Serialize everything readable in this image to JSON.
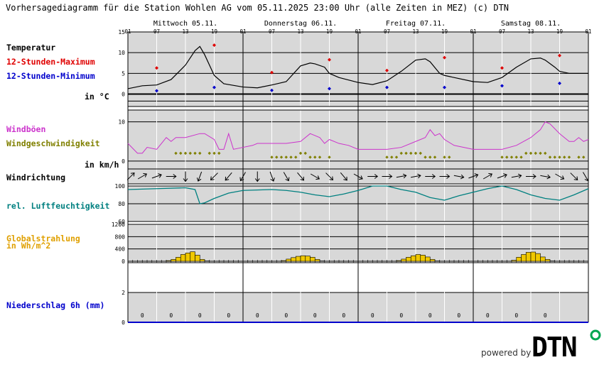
{
  "title": "Vorhersagediagramm für die Station Wohlen AG vom 05.11.2025 23:00 Uhr (alle Zeiten in MEZ)   (c) DTN",
  "days": [
    "Mittwoch 05.11.",
    "Donnerstag 06.11.",
    "Freitag 07.11.",
    "Samstag 08.11."
  ],
  "hour_ticks": [
    "01",
    "07",
    "13",
    "19",
    "01",
    "07",
    "13",
    "19",
    "01",
    "07",
    "13",
    "19",
    "01",
    "07",
    "13",
    "19",
    "01"
  ],
  "labels": {
    "temp": "Temperatur",
    "tmax": "12-Stunden-Maximum",
    "tmin": "12-Stunden-Minimum",
    "temp_unit": "in °C",
    "gust": "Windböen",
    "wind": "Windgeschwindigkeit",
    "wind_unit": "in km/h",
    "winddir": "Windrichtung",
    "humidity": "rel. Luftfeuchtigkeit",
    "radiation": "Globalstrahlung",
    "radiation_unit": "in Wh/m^2",
    "precip": "Niederschlag 6h (mm)"
  },
  "brand": {
    "powered_by": "powered by",
    "logo_text": "DTN",
    "logo_color": "#000000",
    "logo_accent": "#00a651"
  },
  "colors": {
    "temp": "#000000",
    "tmax": "#e00000",
    "tmin": "#0000cc",
    "gust": "#cc33cc",
    "wind": "#808000",
    "humidity": "#008080",
    "radiation": "#f0c800",
    "radiation_label": "#e0a000",
    "precip_label": "#0000cc",
    "panel": "#d8d8d8"
  },
  "chart_data": [
    {
      "type": "line",
      "name": "temperature",
      "x_unit": "hours since 05.11. 01:00",
      "yticks": [
        0,
        5,
        10,
        15
      ],
      "ylim": [
        -3,
        15
      ],
      "x": [
        0,
        3,
        6,
        9,
        12,
        14,
        15,
        16,
        18,
        20,
        24,
        27,
        30,
        33,
        36,
        38,
        39,
        41,
        42,
        44,
        48,
        51,
        54,
        57,
        60,
        62,
        63,
        65,
        66,
        68,
        72,
        75,
        78,
        81,
        84,
        86,
        87,
        89,
        90,
        92,
        96
      ],
      "values": [
        1.3,
        2,
        2.2,
        3.5,
        7,
        10.5,
        11.5,
        9.5,
        4.5,
        2.5,
        1.7,
        1.5,
        2.2,
        3,
        6.8,
        7.5,
        7.3,
        6.5,
        5,
        4,
        2.8,
        2.3,
        3.2,
        5.5,
        8.2,
        8.5,
        7.8,
        5,
        4.5,
        4,
        3,
        2.8,
        4,
        6.5,
        8.5,
        8.7,
        8.2,
        6.5,
        5.5,
        5,
        5
      ],
      "max_x": [
        6,
        18,
        30,
        42,
        54,
        66,
        78,
        90
      ],
      "max": [
        6.3,
        11.8,
        5.2,
        8.3,
        5.7,
        8.8,
        6.3,
        9.3
      ],
      "min_x": [
        6,
        18,
        30,
        42,
        54,
        66,
        78,
        90
      ],
      "min": [
        0.8,
        1.6,
        0.9,
        1.3,
        1.6,
        1.6,
        2,
        2.6
      ]
    },
    {
      "type": "line",
      "name": "wind",
      "yticks": [
        0,
        10
      ],
      "ylim": [
        -2,
        13
      ],
      "gust_x": [
        0,
        2,
        3,
        4,
        6,
        7,
        8,
        9,
        10,
        12,
        15,
        16,
        18,
        19,
        20,
        21,
        22,
        24,
        26,
        27,
        30,
        33,
        36,
        38,
        39,
        40,
        41,
        42,
        44,
        46,
        48,
        50,
        54,
        57,
        60,
        62,
        63,
        64,
        65,
        66,
        68,
        72,
        75,
        78,
        81,
        84,
        86,
        87,
        88,
        90,
        92,
        93,
        94,
        95,
        96
      ],
      "gust": [
        4.5,
        2,
        2,
        3.5,
        3,
        4.5,
        6,
        5,
        6,
        6,
        7,
        7,
        5.5,
        3,
        3,
        7,
        3,
        3.5,
        4,
        4.5,
        4.5,
        4.5,
        5,
        7,
        6.5,
        6,
        4.5,
        5.5,
        4.5,
        4,
        3,
        3,
        3,
        3.5,
        5,
        6,
        8,
        6.5,
        7,
        5.5,
        4,
        3,
        3,
        3,
        4,
        6,
        8,
        10,
        9.5,
        7,
        5,
        5,
        6,
        5,
        5.5
      ],
      "wind_x": [
        10,
        11,
        12,
        13,
        14,
        15,
        17,
        18,
        19,
        30,
        31,
        32,
        33,
        34,
        35,
        36,
        37,
        38,
        39,
        40,
        42,
        54,
        55,
        56,
        57,
        58,
        59,
        60,
        61,
        62,
        63,
        64,
        66,
        67,
        78,
        79,
        80,
        81,
        82,
        83,
        84,
        85,
        86,
        87,
        88,
        89,
        90,
        91,
        92,
        94,
        95
      ],
      "wind": [
        2,
        2,
        2,
        2,
        2,
        2,
        2,
        2,
        2,
        1,
        1,
        1,
        1,
        1,
        1,
        2,
        2,
        1,
        1,
        1,
        1,
        1,
        1,
        1,
        2,
        2,
        2,
        2,
        2,
        1,
        1,
        1,
        1,
        1,
        1,
        1,
        1,
        1,
        1,
        2,
        2,
        2,
        2,
        2,
        1,
        1,
        1,
        1,
        1,
        1,
        1
      ]
    },
    {
      "type": "table",
      "name": "wind_direction",
      "x": [
        0,
        3,
        6,
        9,
        12,
        15,
        18,
        21,
        24,
        27,
        30,
        33,
        36,
        39,
        42,
        45,
        48,
        51,
        54,
        57,
        60,
        63,
        66,
        69,
        72,
        75,
        78,
        81,
        84,
        87,
        90,
        93,
        96
      ],
      "direction_deg": [
        225,
        240,
        250,
        270,
        0,
        20,
        45,
        40,
        30,
        0,
        340,
        330,
        320,
        300,
        315,
        320,
        300,
        270,
        270,
        260,
        260,
        270,
        270,
        280,
        250,
        240,
        250,
        260,
        270,
        280,
        300,
        315,
        330
      ]
    },
    {
      "type": "line",
      "name": "humidity",
      "yticks": [
        60,
        80,
        100
      ],
      "ylim": [
        60,
        100
      ],
      "x": [
        0,
        6,
        12,
        14,
        15,
        16,
        18,
        21,
        24,
        30,
        33,
        36,
        39,
        42,
        45,
        48,
        51,
        54,
        57,
        60,
        63,
        66,
        69,
        72,
        75,
        78,
        81,
        84,
        87,
        90,
        93,
        96
      ],
      "values": [
        96,
        97,
        98,
        96,
        80,
        81,
        86,
        92,
        95,
        96,
        95,
        93,
        90,
        88,
        91,
        95,
        100,
        100,
        96,
        93,
        87,
        84,
        89,
        93,
        97,
        100,
        96,
        90,
        86,
        84,
        90,
        97
      ]
    },
    {
      "type": "bar",
      "name": "radiation",
      "yticks": [
        0,
        400,
        800,
        1200
      ],
      "ylim": [
        0,
        1200
      ],
      "x": [
        8,
        9,
        10,
        11,
        12,
        13,
        14,
        15,
        16,
        32,
        33,
        34,
        35,
        36,
        37,
        38,
        39,
        40,
        56,
        57,
        58,
        59,
        60,
        61,
        62,
        63,
        64,
        80,
        81,
        82,
        83,
        84,
        85,
        86,
        87,
        88
      ],
      "values": [
        20,
        60,
        130,
        220,
        270,
        310,
        200,
        60,
        10,
        20,
        70,
        120,
        160,
        180,
        170,
        130,
        60,
        10,
        20,
        70,
        130,
        180,
        220,
        200,
        140,
        60,
        10,
        30,
        130,
        220,
        290,
        300,
        250,
        140,
        60,
        10
      ]
    },
    {
      "type": "table",
      "name": "precipitation_6h",
      "ylim": [
        0,
        4
      ],
      "yticks": [
        0,
        2
      ],
      "x": [
        3,
        9,
        15,
        21,
        27,
        33,
        39,
        45,
        51,
        57,
        63,
        69,
        75,
        81,
        87
      ],
      "values": [
        0,
        0,
        0,
        0,
        0,
        0,
        0,
        0,
        0,
        0,
        0,
        0,
        0,
        0,
        0
      ]
    }
  ]
}
